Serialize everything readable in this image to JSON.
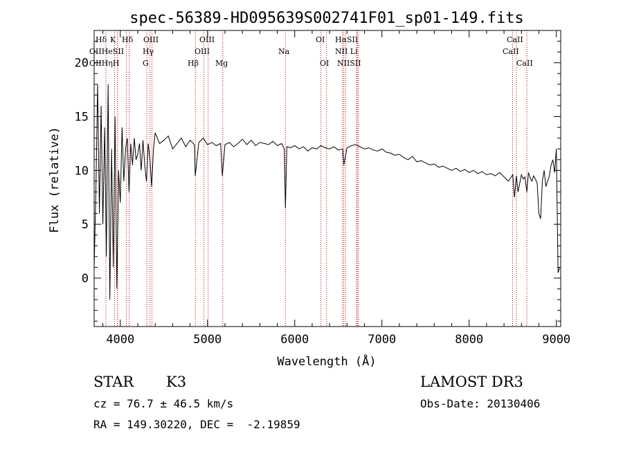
{
  "chart_data": {
    "type": "line",
    "title": "spec-56389-HD095639S002741F01_sp01-149.fits",
    "xlabel": "Wavelength (Å)",
    "ylabel": "Flux (relative)",
    "xlim": [
      3700,
      9050
    ],
    "ylim": [
      -4.5,
      23
    ],
    "xticks": [
      4000,
      5000,
      6000,
      7000,
      8000,
      9000
    ],
    "yticks": [
      0,
      5,
      10,
      15,
      20
    ],
    "series": [
      {
        "name": "spectrum",
        "x": [
          3700,
          3720,
          3740,
          3760,
          3780,
          3800,
          3820,
          3840,
          3860,
          3880,
          3900,
          3920,
          3940,
          3960,
          3980,
          4000,
          4020,
          4040,
          4060,
          4080,
          4100,
          4120,
          4140,
          4160,
          4180,
          4200,
          4220,
          4240,
          4260,
          4280,
          4300,
          4320,
          4340,
          4360,
          4380,
          4400,
          4450,
          4500,
          4550,
          4600,
          4650,
          4700,
          4750,
          4800,
          4850,
          4860,
          4900,
          4950,
          5000,
          5050,
          5100,
          5150,
          5170,
          5200,
          5250,
          5300,
          5350,
          5400,
          5450,
          5500,
          5550,
          5600,
          5650,
          5700,
          5750,
          5800,
          5850,
          5880,
          5893,
          5910,
          5950,
          6000,
          6050,
          6100,
          6150,
          6200,
          6250,
          6300,
          6350,
          6400,
          6450,
          6500,
          6550,
          6563,
          6600,
          6650,
          6700,
          6750,
          6800,
          6850,
          6900,
          6950,
          7000,
          7050,
          7100,
          7150,
          7200,
          7250,
          7300,
          7350,
          7400,
          7450,
          7500,
          7550,
          7600,
          7650,
          7700,
          7750,
          7800,
          7850,
          7900,
          7950,
          8000,
          8050,
          8100,
          8150,
          8200,
          8250,
          8300,
          8350,
          8400,
          8450,
          8500,
          8520,
          8542,
          8560,
          8600,
          8620,
          8640,
          8662,
          8680,
          8700,
          8720,
          8740,
          8760,
          8780,
          8800,
          8820,
          8840,
          8860,
          8880,
          8900,
          8920,
          8940,
          8960,
          8980,
          9000,
          9020,
          9040
        ],
        "values": [
          1.0,
          8.0,
          18.0,
          6.0,
          16.0,
          5.0,
          14.0,
          2.0,
          18.0,
          -2.0,
          12.0,
          1.0,
          15.0,
          -1.0,
          10.0,
          7.0,
          14.0,
          9.0,
          12.0,
          13.0,
          8.0,
          12.5,
          10.5,
          13.0,
          11.0,
          11.5,
          12.5,
          10.0,
          12.8,
          10.5,
          9.0,
          12.5,
          11.0,
          8.5,
          12.0,
          13.5,
          12.5,
          12.8,
          13.2,
          12.0,
          12.5,
          13.0,
          12.2,
          12.8,
          12.4,
          9.5,
          12.6,
          13.0,
          12.4,
          12.6,
          12.3,
          12.5,
          9.5,
          12.4,
          12.6,
          12.2,
          12.5,
          12.9,
          12.4,
          12.8,
          12.3,
          12.6,
          12.5,
          12.4,
          12.7,
          12.3,
          12.5,
          12.0,
          6.5,
          12.2,
          12.1,
          12.3,
          12.0,
          12.2,
          11.8,
          12.1,
          12.0,
          12.3,
          12.1,
          12.0,
          12.2,
          11.9,
          12.0,
          10.5,
          12.1,
          12.3,
          12.4,
          12.2,
          12.0,
          12.1,
          11.9,
          11.8,
          12.0,
          11.7,
          11.6,
          11.4,
          11.5,
          11.2,
          11.0,
          11.3,
          10.8,
          10.9,
          10.7,
          10.5,
          10.6,
          10.3,
          10.4,
          10.2,
          10.0,
          10.2,
          9.9,
          10.1,
          9.8,
          10.0,
          9.7,
          9.9,
          9.6,
          9.7,
          9.5,
          9.8,
          9.4,
          9.0,
          9.6,
          7.5,
          9.5,
          8.0,
          9.6,
          9.2,
          9.4,
          8.0,
          9.8,
          9.3,
          9.0,
          9.5,
          9.2,
          8.8,
          6.0,
          5.5,
          9.0,
          10.0,
          8.5,
          9.0,
          9.5,
          10.5,
          11.0,
          9.8,
          12.0,
          0.5,
          1.0
        ]
      }
    ],
    "spectral_lines": [
      {
        "label": "Hδ",
        "wl": 4102
      },
      {
        "label": "OIII",
        "wl": 4363
      },
      {
        "label": "Hγ",
        "wl": 4340
      },
      {
        "label": "G",
        "wl": 4305
      },
      {
        "label": "Hβ",
        "wl": 4861
      },
      {
        "label": "OIII",
        "wl": 4959
      },
      {
        "label": "OIII",
        "wl": 5007
      },
      {
        "label": "Mg",
        "wl": 5175
      },
      {
        "label": "Na",
        "wl": 5893
      },
      {
        "label": "OI",
        "wl": 6300
      },
      {
        "label": "OI",
        "wl": 6364
      },
      {
        "label": "Hα",
        "wl": 6563
      },
      {
        "label": "NII",
        "wl": 6548
      },
      {
        "label": "NII",
        "wl": 6584
      },
      {
        "label": "SII",
        "wl": 6717
      },
      {
        "label": "SII",
        "wl": 6731
      },
      {
        "label": "Li",
        "wl": 6708
      },
      {
        "label": "CaII",
        "wl": 8498
      },
      {
        "label": "CaII",
        "wl": 8542
      },
      {
        "label": "CaII",
        "wl": 8662
      },
      {
        "label": "Hε",
        "wl": 3970
      },
      {
        "label": "K",
        "wl": 3934
      },
      {
        "label": "H",
        "wl": 3968
      },
      {
        "label": "Hη",
        "wl": 3835
      },
      {
        "label": "SII",
        "wl": 4069
      }
    ],
    "line_label_text": {
      "r1a": "Hδ",
      "r1b": "K",
      "r1c": "Hδ",
      "r1d": "OIII",
      "r1e": "OIII",
      "r1f": "OI",
      "r1g": "HαSII",
      "r1h": "CaII",
      "r2a": "OIIHeSII",
      "r2b": "Hγ",
      "r2c": "OIII",
      "r2d": "Na",
      "r2e": "NII Li",
      "r2f": "CaII",
      "r3a": "OIIHηH",
      "r3b": "G",
      "r3c": "Hβ",
      "r3d": "Mg",
      "r3e": "OI",
      "r3f": "NIISII",
      "r3g": "CaII"
    }
  },
  "info": {
    "object_class": "STAR",
    "subclass": "K3",
    "survey": "LAMOST DR3",
    "cz": "cz = 76.7 ± 46.5 km/s",
    "obs_date": "Obs-Date: 20130406",
    "coords": "RA = 149.30220, DEC =  -2.19859"
  }
}
